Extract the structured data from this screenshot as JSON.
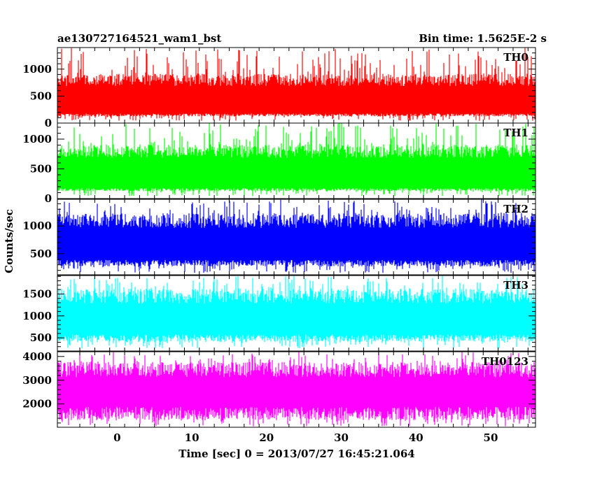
{
  "header": {
    "left_title": "ae130727164521_wam1_bst",
    "right_title": "Bin time: 1.5625E-2 s"
  },
  "axes": {
    "xlabel": "Time [sec] 0 = 2013/07/27 16:45:21.064",
    "ylabel": "Counts/sec"
  },
  "chart_data": {
    "type": "line",
    "bin_time_s": 0.015625,
    "xlim": [
      -8,
      56
    ],
    "xticks": [
      0,
      10,
      20,
      30,
      40,
      50
    ],
    "series": [
      {
        "name": "TH0",
        "color": "#ff0000",
        "ylim": [
          0,
          1400
        ],
        "yticks": [
          0,
          500,
          1000
        ],
        "base": [
          150,
          800
        ],
        "spike_max": 1400,
        "dip_min": 40
      },
      {
        "name": "TH1",
        "color": "#00ff00",
        "ylim": [
          0,
          1270
        ],
        "yticks": [
          0,
          500,
          1000
        ],
        "base": [
          150,
          800
        ],
        "spike_max": 1270,
        "dip_min": 40
      },
      {
        "name": "TH2",
        "color": "#0000ff",
        "ylim": [
          120,
          1480
        ],
        "yticks": [
          500,
          1000
        ],
        "base": [
          330,
          1100
        ],
        "spike_max": 1480,
        "dip_min": 150
      },
      {
        "name": "TH3",
        "color": "#00ffff",
        "ylim": [
          200,
          1920
        ],
        "yticks": [
          500,
          1000,
          1500
        ],
        "base": [
          490,
          1450
        ],
        "spike_max": 1920,
        "dip_min": 260
      },
      {
        "name": "TH0123",
        "color": "#ff00ff",
        "ylim": [
          1020,
          4200
        ],
        "yticks": [
          2000,
          3000,
          4000
        ],
        "base": [
          1600,
          3450
        ],
        "spike_max": 4200,
        "dip_min": 1060
      }
    ]
  }
}
